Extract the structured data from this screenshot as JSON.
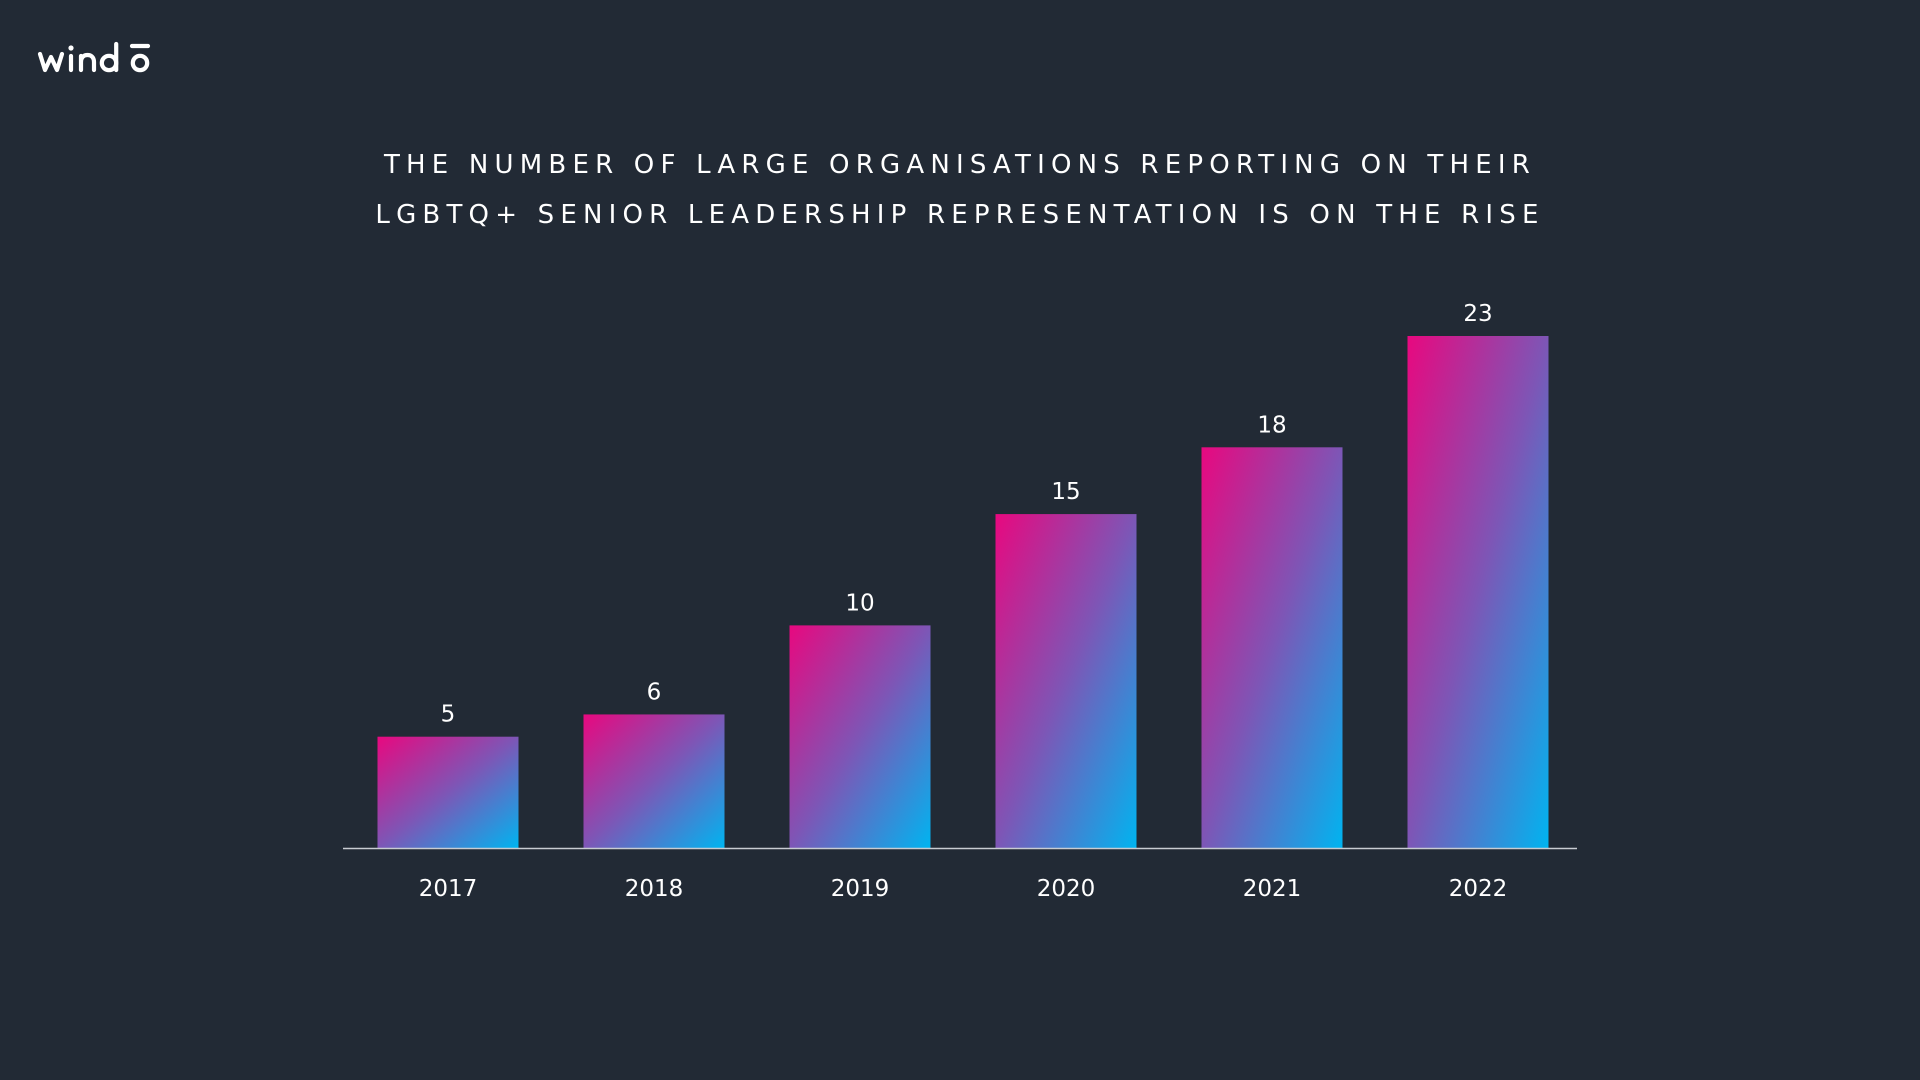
{
  "brand": {
    "name": "windō",
    "logo_color": "#ffffff"
  },
  "colors": {
    "background": "#222a35",
    "bar_gradient_start": "#e8087f",
    "bar_gradient_mid": "#7d56b6",
    "bar_gradient_end": "#00b4f0",
    "axis": "#c8ccd2",
    "text": "#ffffff"
  },
  "chart_data": {
    "type": "bar",
    "title": "THE NUMBER OF LARGE ORGANISATIONS REPORTING ON THEIR LGBTQ+ SENIOR LEADERSHIP REPRESENTATION IS ON THE RISE",
    "title_lines": [
      "THE NUMBER OF LARGE ORGANISATIONS REPORTING ON THEIR",
      "LGBTQ+ SENIOR LEADERSHIP REPRESENTATION IS ON THE RISE"
    ],
    "categories": [
      "2017",
      "2018",
      "2019",
      "2020",
      "2021",
      "2022"
    ],
    "values": [
      5,
      6,
      10,
      15,
      18,
      23
    ],
    "xlabel": "",
    "ylabel": "",
    "ylim": [
      0,
      23
    ],
    "grid": false,
    "legend": "none",
    "data_labels": true
  }
}
